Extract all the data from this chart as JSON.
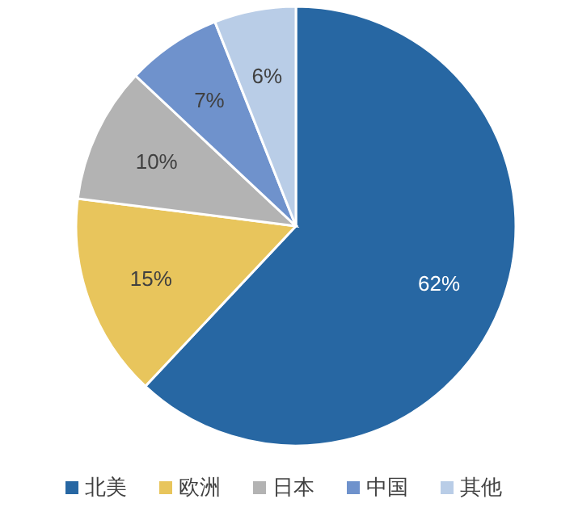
{
  "chart_data": {
    "type": "pie",
    "categories": [
      "北美",
      "欧洲",
      "日本",
      "中国",
      "其他"
    ],
    "values": [
      62,
      15,
      10,
      7,
      6
    ],
    "colors": [
      "#2767a3",
      "#e8c55c",
      "#b3b3b3",
      "#6f92cc",
      "#b9cde7"
    ],
    "value_labels": [
      "62%",
      "15%",
      "10%",
      "7%",
      "6%"
    ],
    "legend": "bottom"
  }
}
